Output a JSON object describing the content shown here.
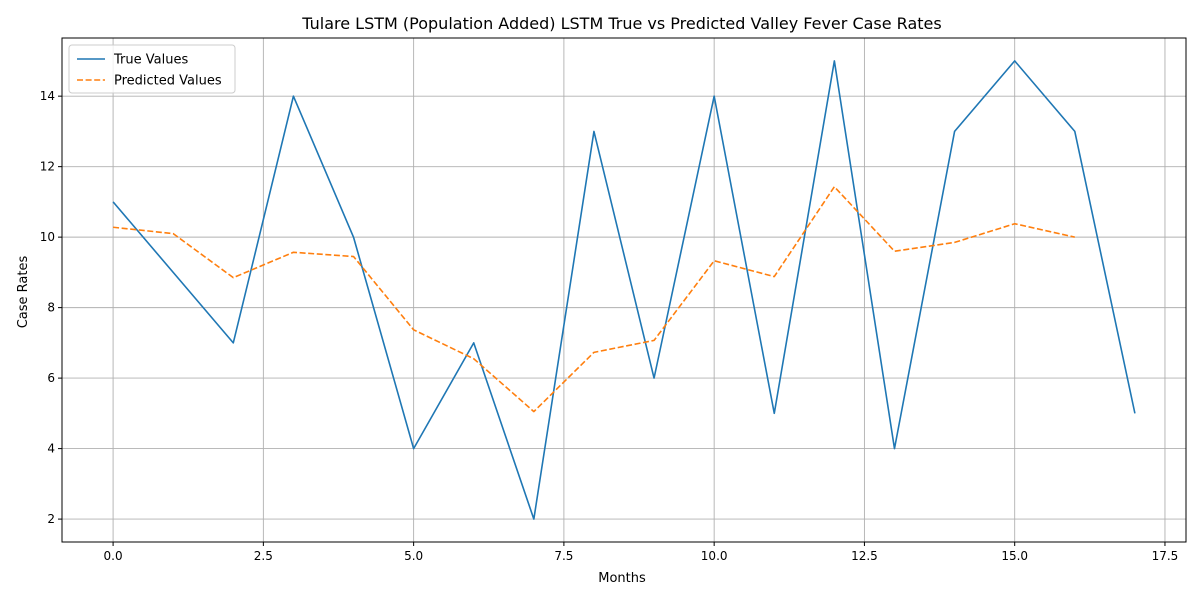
{
  "chart_data": {
    "type": "line",
    "title": "Tulare LSTM (Population Added) LSTM True vs Predicted Valley Fever Case Rates",
    "xlabel": "Months",
    "ylabel": "Case Rates",
    "xlim": [
      -0.85,
      17.85
    ],
    "ylim": [
      1.35,
      15.65
    ],
    "xticks": [
      0.0,
      2.5,
      5.0,
      7.5,
      10.0,
      12.5,
      15.0,
      17.5
    ],
    "xtick_labels": [
      "0.0",
      "2.5",
      "5.0",
      "7.5",
      "10.0",
      "12.5",
      "15.0",
      "17.5"
    ],
    "yticks": [
      2,
      4,
      6,
      8,
      10,
      12,
      14
    ],
    "ytick_labels": [
      "2",
      "4",
      "6",
      "8",
      "10",
      "12",
      "14"
    ],
    "grid": true,
    "legend_position": "top-left",
    "series": [
      {
        "name": "True Values",
        "color": "#1f77b4",
        "style": "solid",
        "x": [
          0,
          1,
          2,
          3,
          4,
          5,
          6,
          7,
          8,
          9,
          10,
          11,
          12,
          13,
          14,
          15,
          16,
          17
        ],
        "values": [
          11,
          9,
          7,
          14,
          10,
          4,
          7,
          2,
          13,
          6,
          14,
          5,
          15,
          4,
          13,
          15,
          13,
          5
        ]
      },
      {
        "name": "Predicted Values",
        "color": "#ff7f0e",
        "style": "dashed",
        "x": [
          0,
          1,
          2,
          3,
          4,
          5,
          6,
          7,
          8,
          9,
          10,
          11,
          12,
          13,
          14,
          15,
          16
        ],
        "values": [
          10.28,
          10.1,
          8.85,
          9.57,
          9.45,
          7.37,
          6.55,
          5.05,
          6.73,
          7.07,
          9.33,
          8.88,
          11.43,
          9.6,
          9.85,
          10.38,
          10.0
        ]
      }
    ]
  }
}
